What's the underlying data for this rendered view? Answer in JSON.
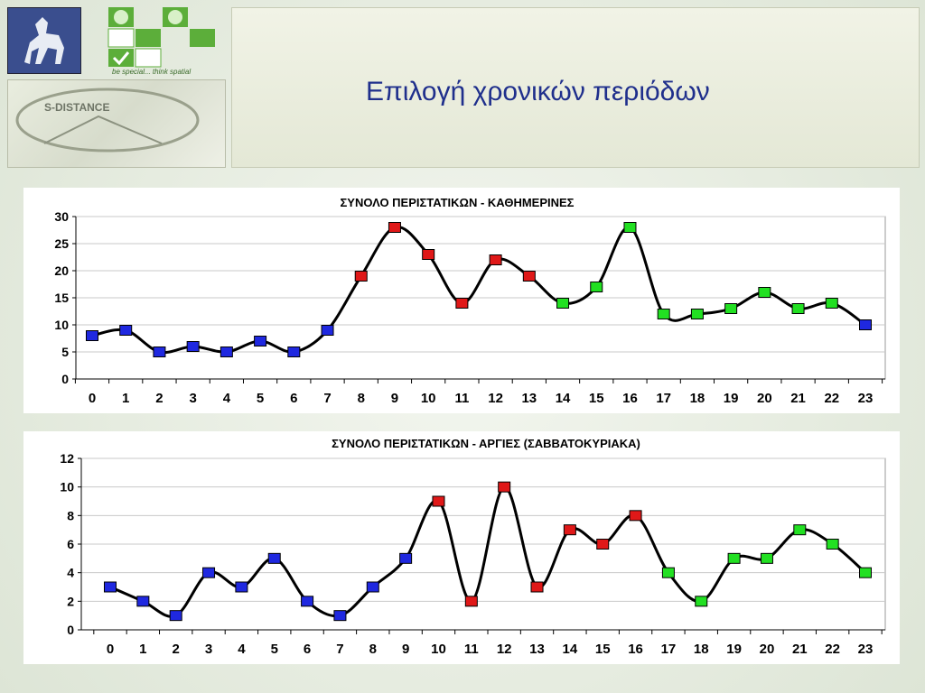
{
  "page": {
    "title": "Επιλογή χρονικών περιόδων",
    "logo_tagline": "be special... think spatial",
    "logo_name": "S-DISTANCE"
  },
  "colors": {
    "low": "#1f28e0",
    "mid": "#e01818",
    "high": "#22e022",
    "line": "#000000"
  },
  "chart_data": [
    {
      "type": "line",
      "title": "ΣΥΝΟΛΟ ΠΕΡΙΣΤΑΤΙΚΩΝ - ΚΑΘΗΜΕΡΙΝΕΣ",
      "categories": [
        "0",
        "1",
        "2",
        "3",
        "4",
        "5",
        "6",
        "7",
        "8",
        "9",
        "10",
        "11",
        "12",
        "13",
        "14",
        "15",
        "16",
        "17",
        "18",
        "19",
        "20",
        "21",
        "22",
        "23"
      ],
      "values": [
        8,
        9,
        5,
        6,
        5,
        7,
        5,
        9,
        19,
        28,
        23,
        14,
        22,
        19,
        14,
        17,
        28,
        12,
        12,
        13,
        16,
        13,
        14,
        10
      ],
      "marker_colors": [
        "low",
        "low",
        "low",
        "low",
        "low",
        "low",
        "low",
        "low",
        "mid",
        "mid",
        "mid",
        "mid",
        "mid",
        "mid",
        "high",
        "high",
        "high",
        "high",
        "high",
        "high",
        "high",
        "high",
        "high",
        "low"
      ],
      "ylim": [
        0,
        30
      ],
      "yticks": [
        0,
        5,
        10,
        15,
        20,
        25,
        30
      ],
      "grid": true
    },
    {
      "type": "line",
      "title": "ΣΥΝΟΛΟ ΠΕΡΙΣΤΑΤΙΚΩΝ - ΑΡΓΙΕΣ (ΣΑΒΒΑΤΟΚΥΡΙΑΚΑ)",
      "categories": [
        "0",
        "1",
        "2",
        "3",
        "4",
        "5",
        "6",
        "7",
        "8",
        "9",
        "10",
        "11",
        "12",
        "13",
        "14",
        "15",
        "16",
        "17",
        "18",
        "19",
        "20",
        "21",
        "22",
        "23"
      ],
      "values": [
        3,
        2,
        1,
        4,
        3,
        5,
        2,
        1,
        3,
        5,
        9,
        2,
        10,
        3,
        7,
        6,
        8,
        4,
        2,
        5,
        5,
        7,
        6,
        4
      ],
      "marker_colors": [
        "low",
        "low",
        "low",
        "low",
        "low",
        "low",
        "low",
        "low",
        "low",
        "low",
        "mid",
        "mid",
        "mid",
        "mid",
        "mid",
        "mid",
        "mid",
        "high",
        "high",
        "high",
        "high",
        "high",
        "high",
        "high"
      ],
      "ylim": [
        0,
        12
      ],
      "yticks": [
        0,
        2,
        4,
        6,
        8,
        10,
        12
      ],
      "grid": true
    }
  ]
}
